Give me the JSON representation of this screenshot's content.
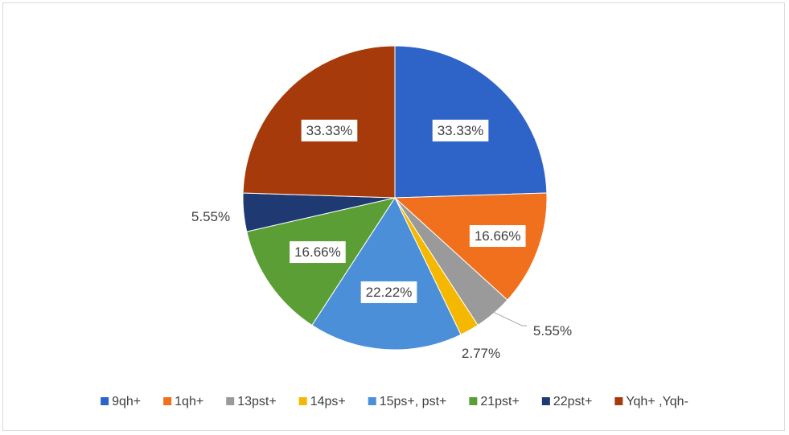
{
  "chart_data": {
    "type": "pie",
    "title": "",
    "slices": [
      {
        "name": "9qh+",
        "value": 33.33,
        "label": "33.33%",
        "color": "#2e63c8"
      },
      {
        "name": "1qh+",
        "value": 16.66,
        "label": "16.66%",
        "color": "#f0701e"
      },
      {
        "name": "13pst+",
        "value": 5.55,
        "label": "5.55%",
        "color": "#9a9a9a"
      },
      {
        "name": "14ps+",
        "value": 2.77,
        "label": "2.77%",
        "color": "#f5b800"
      },
      {
        "name": "15ps+, pst+",
        "value": 22.22,
        "label": "22.22%",
        "color": "#4a8fd8"
      },
      {
        "name": "21pst+",
        "value": 16.66,
        "label": "16.66%",
        "color": "#5b9e35"
      },
      {
        "name": "22pst+",
        "value": 5.55,
        "label": "5.55%",
        "color": "#1f3a73"
      },
      {
        "name": "Yqh+ ,Yqh-",
        "value": 33.33,
        "label": "33.33%",
        "color": "#a63a0a"
      }
    ],
    "legend_position": "bottom"
  }
}
